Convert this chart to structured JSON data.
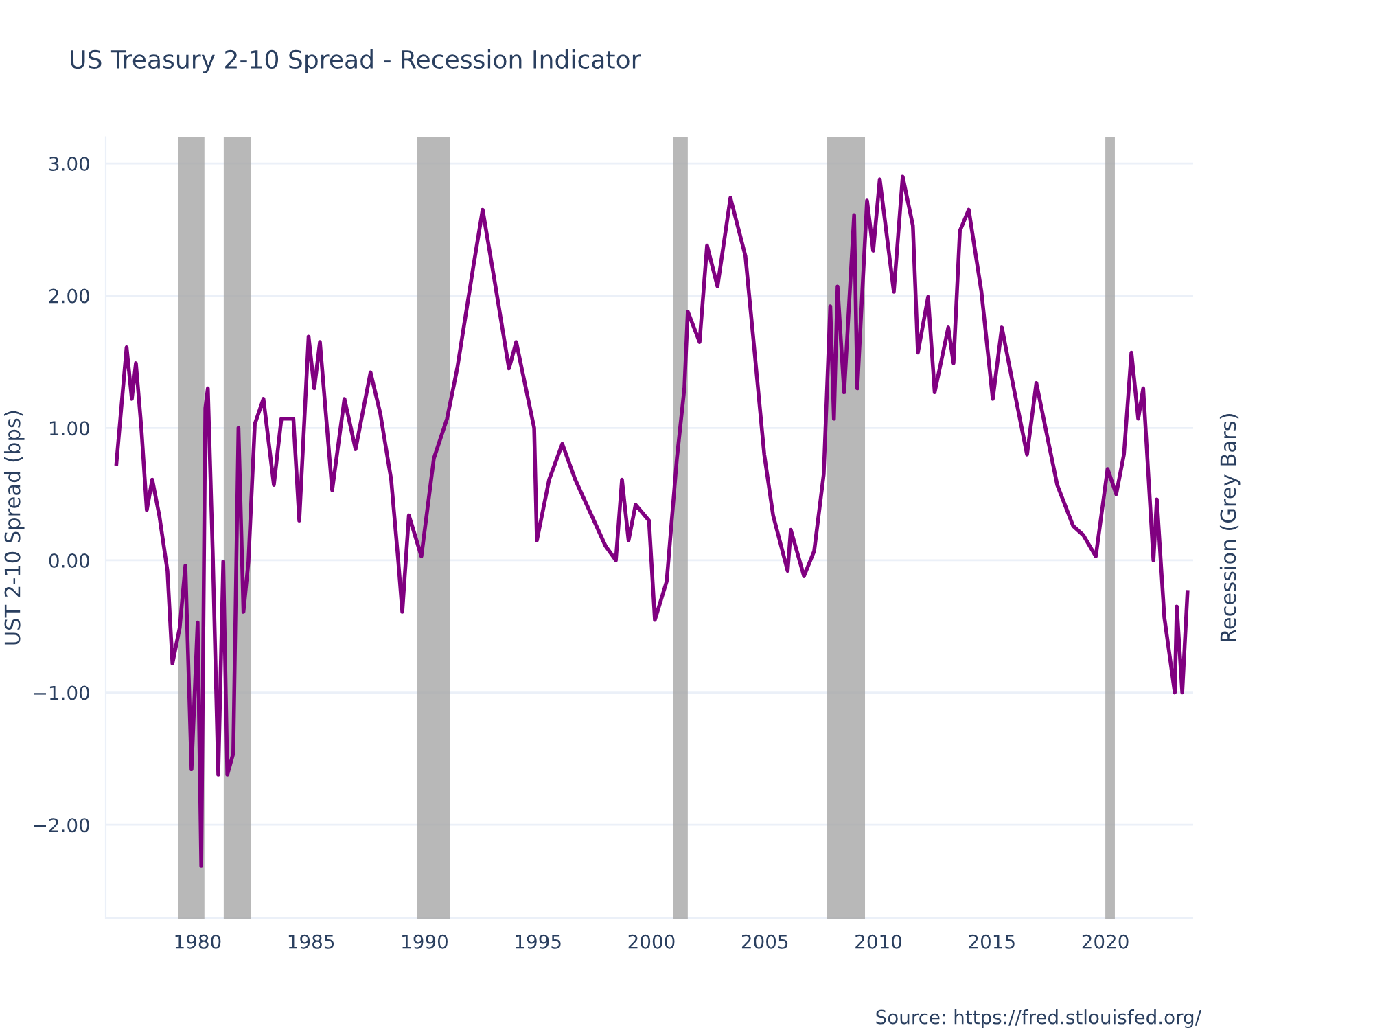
{
  "chart_data": {
    "type": "line",
    "title": "US Treasury 2-10 Spread - Recession Indicator",
    "ylabel": "UST 2-10 Spread (bps)",
    "y2label": "Recession (Grey Bars)",
    "annotations": [
      "Source: https://fred.stlouisfed.org/"
    ],
    "series": [
      {
        "color": "#800080",
        "x": [
          1976.42,
          1976.87,
          1977.1,
          1977.28,
          1977.52,
          1977.76,
          1978.0,
          1978.31,
          1978.67,
          1978.89,
          1979.21,
          1979.46,
          1979.73,
          1980.0,
          1980.16,
          1980.34,
          1980.45,
          1980.67,
          1980.91,
          1981.13,
          1981.31,
          1981.57,
          1981.8,
          1982.02,
          1982.24,
          1982.52,
          1982.9,
          1983.36,
          1983.69,
          1984.22,
          1984.48,
          1984.89,
          1985.14,
          1985.39,
          1985.93,
          1986.47,
          1986.96,
          1987.62,
          1988.05,
          1988.53,
          1988.84,
          1989.02,
          1989.31,
          1989.86,
          1990.41,
          1990.99,
          1991.44,
          1992.15,
          1992.56,
          1993.05,
          1993.72,
          1994.04,
          1994.83,
          1994.95,
          1995.49,
          1996.07,
          1996.64,
          1997.97,
          1998.43,
          1998.7,
          1998.99,
          1999.3,
          1999.89,
          2000.15,
          2000.67,
          2001.12,
          2001.45,
          2001.6,
          2002.12,
          2002.45,
          2002.91,
          2003.48,
          2004.14,
          2004.48,
          2004.97,
          2005.36,
          2006.0,
          2006.14,
          2006.72,
          2007.17,
          2007.59,
          2007.88,
          2008.04,
          2008.2,
          2008.49,
          2008.93,
          2009.07,
          2009.5,
          2009.77,
          2010.06,
          2010.68,
          2011.07,
          2011.52,
          2011.74,
          2012.19,
          2012.48,
          2013.08,
          2013.31,
          2013.59,
          2013.98,
          2014.54,
          2015.04,
          2015.44,
          2016.0,
          2016.55,
          2016.96,
          2017.46,
          2017.88,
          2018.58,
          2019.03,
          2019.58,
          2020.1,
          2020.48,
          2020.82,
          2021.15,
          2021.45,
          2021.67,
          2022.12,
          2022.27,
          2022.6,
          2023.06,
          2023.15,
          2023.39,
          2023.62
        ],
        "values": [
          0.73,
          1.61,
          1.22,
          1.49,
          1.0,
          0.38,
          0.61,
          0.34,
          -0.08,
          -0.78,
          -0.51,
          -0.04,
          -1.58,
          -0.47,
          -2.31,
          1.15,
          1.3,
          0.03,
          -1.62,
          -0.01,
          -1.62,
          -1.46,
          1.0,
          -0.39,
          -0.01,
          1.03,
          1.22,
          0.57,
          1.07,
          1.07,
          0.3,
          1.69,
          1.3,
          1.65,
          0.53,
          1.22,
          0.84,
          1.42,
          1.11,
          0.61,
          0.0,
          -0.39,
          0.34,
          0.03,
          0.77,
          1.07,
          1.45,
          2.22,
          2.65,
          2.15,
          1.45,
          1.65,
          1.0,
          0.15,
          0.61,
          0.88,
          0.61,
          0.11,
          0.0,
          0.61,
          0.15,
          0.42,
          0.3,
          -0.45,
          -0.16,
          0.77,
          1.3,
          1.88,
          1.65,
          2.38,
          2.07,
          2.74,
          2.3,
          1.69,
          0.8,
          0.34,
          -0.08,
          0.23,
          -0.12,
          0.07,
          0.65,
          1.92,
          1.07,
          2.07,
          1.27,
          2.61,
          1.3,
          2.72,
          2.34,
          2.88,
          2.03,
          2.9,
          2.53,
          1.57,
          1.99,
          1.27,
          1.76,
          1.49,
          2.49,
          2.65,
          2.03,
          1.22,
          1.76,
          1.27,
          0.8,
          1.34,
          0.92,
          0.57,
          0.26,
          0.19,
          0.03,
          0.69,
          0.5,
          0.8,
          1.57,
          1.07,
          1.3,
          0.0,
          0.46,
          -0.43,
          -1.0,
          -0.35,
          -1.0,
          -0.24
        ]
      }
    ],
    "bands": [
      {
        "axis": "x",
        "from": 1979.15,
        "to": 1980.3,
        "color": "#a6a6a6"
      },
      {
        "axis": "x",
        "from": 1981.15,
        "to": 1982.36,
        "color": "#a6a6a6"
      },
      {
        "axis": "x",
        "from": 1989.68,
        "to": 1991.13,
        "color": "#a6a6a6"
      },
      {
        "axis": "x",
        "from": 2000.94,
        "to": 2001.6,
        "color": "#a6a6a6"
      },
      {
        "axis": "x",
        "from": 2007.72,
        "to": 2009.41,
        "color": "#a6a6a6"
      },
      {
        "axis": "x",
        "from": 2020.0,
        "to": 2020.42,
        "color": "#a6a6a6"
      }
    ],
    "xlim": [
      1975.95,
      2023.87
    ],
    "xticks": [
      1980,
      1985,
      1990,
      1995,
      2000,
      2005,
      2010,
      2015,
      2020
    ],
    "ylim": [
      -2.71,
      3.2
    ],
    "yticks": [
      {
        "value": -2,
        "label": "−2.00"
      },
      {
        "value": -1,
        "label": "−1.00"
      },
      {
        "value": 0,
        "label": "0.00"
      },
      {
        "value": 1,
        "label": "1.00"
      },
      {
        "value": 2,
        "label": "2.00"
      },
      {
        "value": 3,
        "label": "3.00"
      }
    ],
    "grid": "y",
    "legend": false,
    "marker": "none",
    "line_style": "solid"
  }
}
